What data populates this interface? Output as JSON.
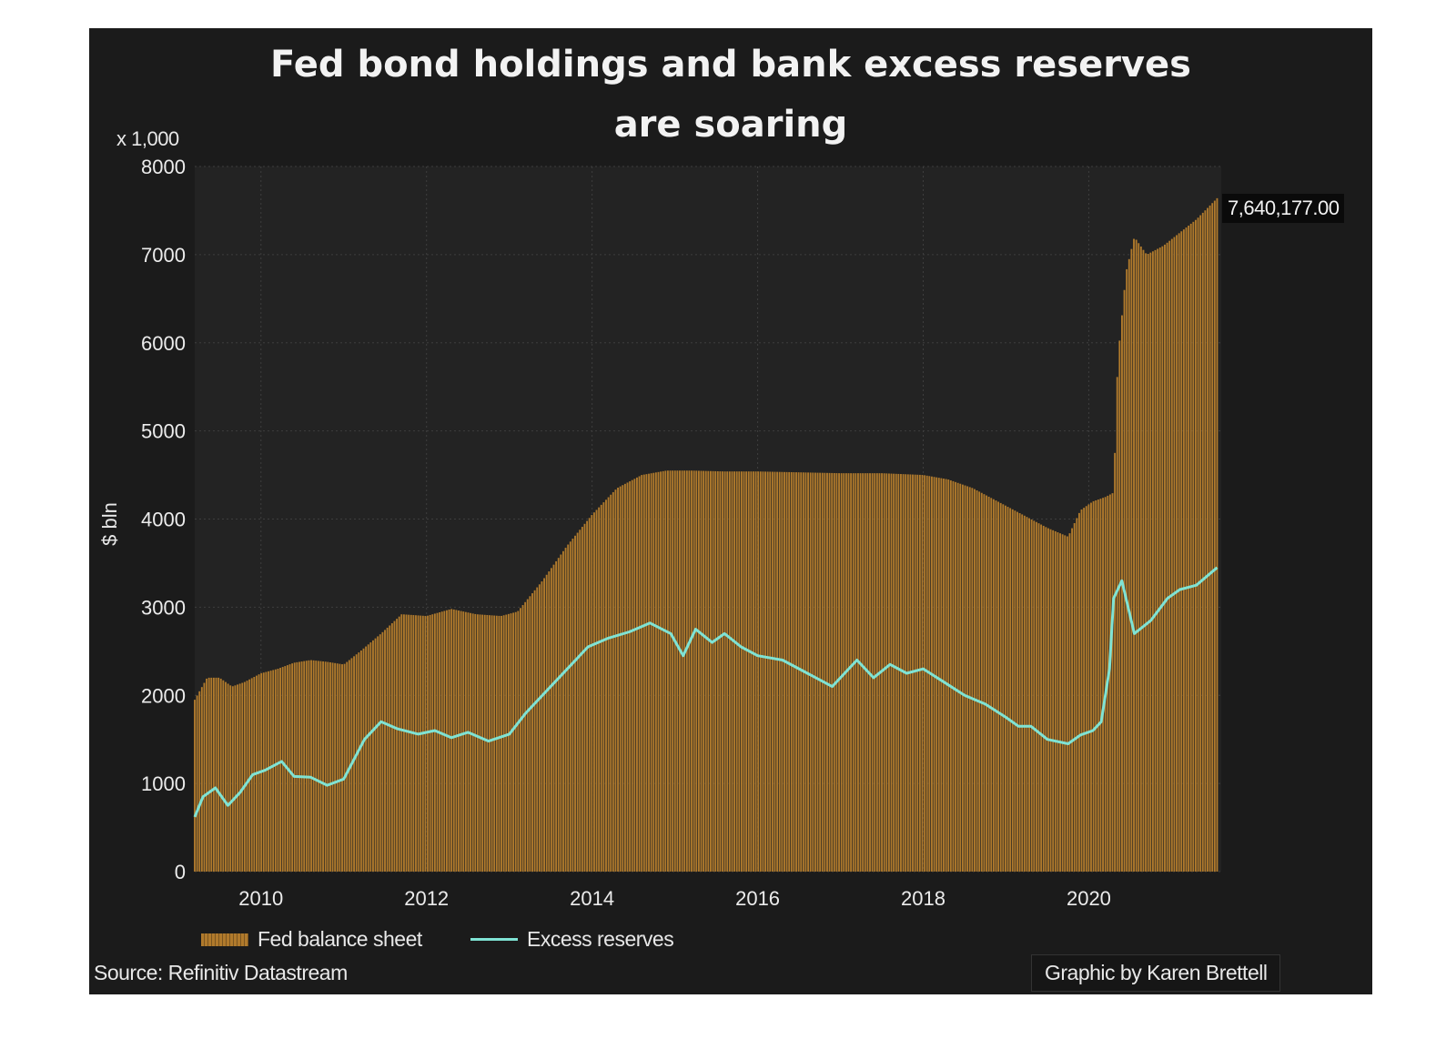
{
  "chart_data": {
    "type": "area",
    "title": "Fed bond holdings and bank excess reserves",
    "subtitle": "are soaring",
    "ylabel": "$ bln",
    "yunit": "x 1,000",
    "ylim": [
      0,
      8000
    ],
    "xlim": [
      2009.2,
      2021.6
    ],
    "y_ticks": [
      "0",
      "1000",
      "2000",
      "3000",
      "4000",
      "5000",
      "6000",
      "7000",
      "8000"
    ],
    "x_ticks": [
      "2010",
      "2012",
      "2014",
      "2016",
      "2018",
      "2020"
    ],
    "grid": true,
    "legend_position": "bottom-left",
    "last_value_label": "7,640,177.00",
    "series": [
      {
        "name": "Fed balance sheet",
        "kind": "bars",
        "color": "#b07a2c",
        "x": [
          2009.2,
          2009.35,
          2009.5,
          2009.65,
          2009.8,
          2010.0,
          2010.2,
          2010.4,
          2010.6,
          2010.8,
          2011.0,
          2011.2,
          2011.45,
          2011.7,
          2012.0,
          2012.3,
          2012.6,
          2012.9,
          2013.1,
          2013.4,
          2013.7,
          2014.0,
          2014.3,
          2014.6,
          2014.9,
          2015.2,
          2015.6,
          2016.0,
          2016.5,
          2017.0,
          2017.5,
          2018.0,
          2018.3,
          2018.6,
          2018.9,
          2019.2,
          2019.5,
          2019.75,
          2019.9,
          2020.05,
          2020.2,
          2020.3,
          2020.35,
          2020.45,
          2020.55,
          2020.7,
          2020.9,
          2021.1,
          2021.3,
          2021.55
        ],
        "values": [
          1950,
          2200,
          2200,
          2100,
          2150,
          2250,
          2300,
          2370,
          2400,
          2380,
          2350,
          2500,
          2700,
          2920,
          2900,
          2980,
          2920,
          2900,
          2950,
          3300,
          3700,
          4050,
          4350,
          4500,
          4550,
          4550,
          4540,
          4540,
          4530,
          4520,
          4520,
          4500,
          4450,
          4350,
          4200,
          4050,
          3900,
          3800,
          4100,
          4200,
          4250,
          4300,
          5800,
          6800,
          7200,
          7000,
          7100,
          7250,
          7400,
          7640
        ]
      },
      {
        "name": "Excess reserves",
        "kind": "line",
        "color": "#7fe3d4",
        "x": [
          2009.2,
          2009.3,
          2009.45,
          2009.6,
          2009.75,
          2009.9,
          2010.05,
          2010.25,
          2010.4,
          2010.6,
          2010.8,
          2011.0,
          2011.25,
          2011.45,
          2011.65,
          2011.9,
          2012.1,
          2012.3,
          2012.5,
          2012.75,
          2013.0,
          2013.2,
          2013.45,
          2013.7,
          2013.95,
          2014.2,
          2014.45,
          2014.7,
          2014.95,
          2015.1,
          2015.25,
          2015.45,
          2015.6,
          2015.8,
          2016.0,
          2016.3,
          2016.6,
          2016.9,
          2017.2,
          2017.4,
          2017.6,
          2017.8,
          2018.0,
          2018.25,
          2018.5,
          2018.75,
          2019.0,
          2019.15,
          2019.3,
          2019.5,
          2019.75,
          2019.9,
          2020.05,
          2020.15,
          2020.25,
          2020.3,
          2020.4,
          2020.55,
          2020.75,
          2020.95,
          2021.1,
          2021.3,
          2021.55
        ],
        "values": [
          620,
          850,
          950,
          750,
          900,
          1100,
          1150,
          1250,
          1080,
          1070,
          980,
          1050,
          1500,
          1700,
          1620,
          1560,
          1600,
          1520,
          1580,
          1480,
          1560,
          1800,
          2050,
          2300,
          2550,
          2650,
          2720,
          2820,
          2700,
          2450,
          2750,
          2600,
          2700,
          2550,
          2450,
          2400,
          2250,
          2100,
          2400,
          2200,
          2350,
          2250,
          2300,
          2150,
          2000,
          1900,
          1750,
          1650,
          1650,
          1500,
          1450,
          1550,
          1600,
          1700,
          2300,
          3100,
          3300,
          2700,
          2850,
          3100,
          3200,
          3250,
          3450
        ]
      }
    ]
  },
  "source": "Source: Refinitiv Datastream",
  "credit": "Graphic by Karen Brettell"
}
